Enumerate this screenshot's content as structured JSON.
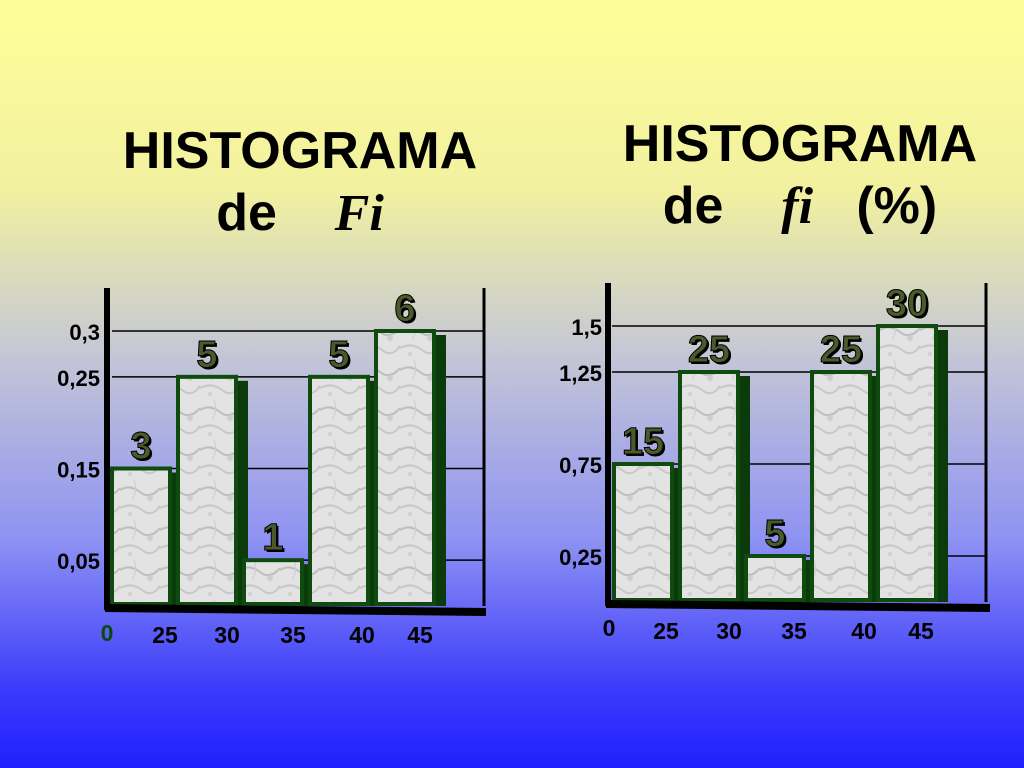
{
  "left": {
    "title_line1": "HISTOGRAMA",
    "title_word": "de",
    "title_symbol": "Fi"
  },
  "right": {
    "title_line1": "HISTOGRAMA",
    "title_word": "de",
    "title_symbol": "fi",
    "title_unit": "(%)"
  },
  "chart_data": [
    {
      "type": "bar",
      "origin_label": "0",
      "x_ticks": [
        "25",
        "30",
        "35",
        "40",
        "45"
      ],
      "y_ticks": [
        {
          "value": 0.05,
          "label": "0,05"
        },
        {
          "value": 0.15,
          "label": "0,15"
        },
        {
          "value": 0.25,
          "label": "0,25"
        },
        {
          "value": 0.3,
          "label": "0,3"
        }
      ],
      "bars": [
        {
          "x0": 20,
          "x1": 25,
          "height": 0.15,
          "label": "3"
        },
        {
          "x0": 25,
          "x1": 30,
          "height": 0.25,
          "label": "5"
        },
        {
          "x0": 30,
          "x1": 35,
          "height": 0.05,
          "label": "1"
        },
        {
          "x0": 35,
          "x1": 40,
          "height": 0.25,
          "label": "5"
        },
        {
          "x0": 40,
          "x1": 45,
          "height": 0.3,
          "label": "6"
        }
      ],
      "ylim": [
        0,
        0.3
      ],
      "grid": true
    },
    {
      "type": "bar",
      "origin_label": "0",
      "x_ticks": [
        "25",
        "30",
        "35",
        "40",
        "45"
      ],
      "y_ticks": [
        {
          "value": 0.25,
          "label": "0,25"
        },
        {
          "value": 0.75,
          "label": "0,75"
        },
        {
          "value": 1.25,
          "label": "1,25"
        },
        {
          "value": 1.5,
          "label": "1,5"
        }
      ],
      "bars": [
        {
          "x0": 20,
          "x1": 25,
          "height": 0.75,
          "label": "15"
        },
        {
          "x0": 25,
          "x1": 30,
          "height": 1.25,
          "label": "25"
        },
        {
          "x0": 30,
          "x1": 35,
          "height": 0.25,
          "label": "5"
        },
        {
          "x0": 35,
          "x1": 40,
          "height": 1.25,
          "label": "25"
        },
        {
          "x0": 40,
          "x1": 45,
          "height": 1.5,
          "label": "30"
        }
      ],
      "ylim": [
        0,
        1.5
      ],
      "grid": true
    }
  ],
  "colors": {
    "bar_fill": "#dcdcdc",
    "bar_border": "#0f4a0f",
    "bar_shadow": "#0b3a0b",
    "axis": "#000000",
    "bar_label": "#4a5a2a",
    "origin_left": "#0b4a0b",
    "origin_right": "#000000"
  }
}
